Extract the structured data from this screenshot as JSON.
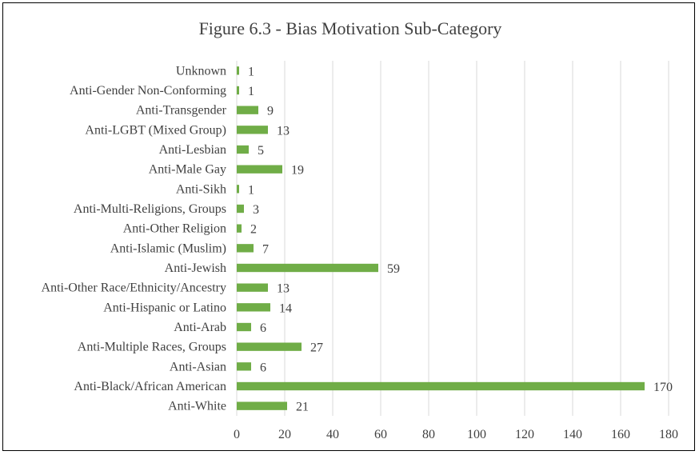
{
  "chart_data": {
    "type": "bar",
    "orientation": "horizontal",
    "title": "Figure 6.3 - Bias Motivation Sub-Category",
    "xlabel": "",
    "ylabel": "",
    "categories": [
      "Unknown",
      "Anti-Gender Non-Conforming",
      "Anti-Transgender",
      "Anti-LGBT (Mixed Group)",
      "Anti-Lesbian",
      "Anti-Male Gay",
      "Anti-Sikh",
      "Anti-Multi-Religions, Groups",
      "Anti-Other Religion",
      "Anti-Islamic (Muslim)",
      "Anti-Jewish",
      "Anti-Other Race/Ethnicity/Ancestry",
      "Anti-Hispanic or Latino",
      "Anti-Arab",
      "Anti-Multiple Races, Groups",
      "Anti-Asian",
      "Anti-Black/African American",
      "Anti-White"
    ],
    "values": [
      1,
      1,
      9,
      13,
      5,
      19,
      1,
      3,
      2,
      7,
      59,
      13,
      14,
      6,
      27,
      6,
      170,
      21
    ],
    "xlim": [
      0,
      180
    ],
    "xticks": [
      0,
      20,
      40,
      60,
      80,
      100,
      120,
      140,
      160,
      180
    ],
    "grid": "vertical",
    "legend": "none",
    "bar_color": "#70ad47",
    "text_color": "#404040",
    "grid_color": "#d9d9d9"
  }
}
